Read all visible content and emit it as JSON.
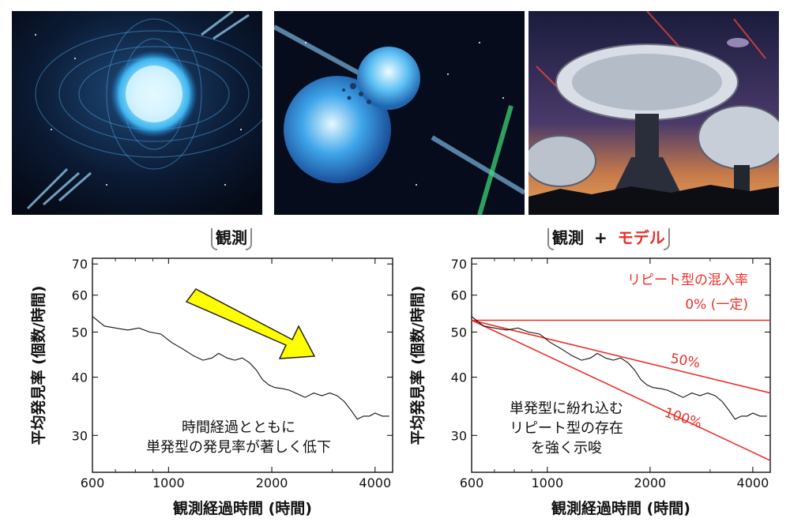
{
  "labels": {
    "left_tag": "観測",
    "right_tag_prefix": "観測",
    "right_tag_plus": "+",
    "right_tag_model": "モデル"
  },
  "chart_data": [
    {
      "type": "line",
      "ylabel": "平均発見率 (個数/時間)",
      "xlabel": "観測経過時間 (時間)",
      "xscale": "log",
      "yscale": "log",
      "xlim": [
        600,
        4500
      ],
      "ylim": [
        25,
        72
      ],
      "xticks": [
        600,
        1000,
        2000,
        4000
      ],
      "xtick_labels": [
        "600",
        "1000",
        "2000",
        "4000"
      ],
      "yticks": [
        30,
        40,
        50,
        60,
        70
      ],
      "ytick_labels": [
        "30",
        "40",
        "50",
        "60",
        "70"
      ],
      "series": [
        {
          "x": [
            600,
            650,
            700,
            760,
            820,
            880,
            950,
            1020,
            1100,
            1180,
            1260,
            1340,
            1400,
            1480,
            1560,
            1640,
            1720,
            1800,
            1880,
            1960,
            2040,
            2150,
            2250,
            2380,
            2500,
            2650,
            2800,
            2950,
            3100,
            3250,
            3400,
            3550,
            3700,
            3850,
            4000,
            4200,
            4400
          ],
          "y": [
            54,
            51.5,
            51,
            50.5,
            51,
            50,
            49.5,
            47.5,
            46,
            44.5,
            43.5,
            44,
            45,
            44,
            43.5,
            44,
            43,
            41.5,
            39.5,
            38.5,
            38,
            37.8,
            37.5,
            36.8,
            36.2,
            37,
            36.5,
            37,
            36.5,
            35.5,
            34,
            32.5,
            33,
            33,
            33.5,
            33,
            33
          ]
        }
      ],
      "annotation_lines": [
        "時間経過とともに",
        "単発型の発見率が著しく低下"
      ],
      "arrow_color": "#ffff00"
    },
    {
      "type": "line",
      "ylabel": "平均発見率 (個数/時間)",
      "xlabel": "観測経過時間 (時間)",
      "xscale": "log",
      "yscale": "log",
      "xlim": [
        600,
        4500
      ],
      "ylim": [
        25,
        72
      ],
      "xticks": [
        600,
        1000,
        2000,
        4000
      ],
      "xtick_labels": [
        "600",
        "1000",
        "2000",
        "4000"
      ],
      "yticks": [
        30,
        40,
        50,
        60,
        70
      ],
      "ytick_labels": [
        "30",
        "40",
        "50",
        "60",
        "70"
      ],
      "series": [
        {
          "x": [
            600,
            650,
            700,
            760,
            820,
            880,
            950,
            1020,
            1100,
            1180,
            1260,
            1340,
            1400,
            1480,
            1560,
            1640,
            1720,
            1800,
            1880,
            1960,
            2040,
            2150,
            2250,
            2380,
            2500,
            2650,
            2800,
            2950,
            3100,
            3250,
            3400,
            3550,
            3700,
            3850,
            4000,
            4200,
            4400
          ],
          "y": [
            54,
            51.5,
            51,
            50.5,
            51,
            50,
            49.5,
            47.5,
            46,
            44.5,
            43.5,
            44,
            45,
            44,
            43.5,
            44,
            43,
            41.5,
            39.5,
            38.5,
            38,
            37.8,
            37.5,
            36.8,
            36.2,
            37,
            36.5,
            37,
            36.5,
            35.5,
            34,
            32.5,
            33,
            33,
            33.5,
            33,
            33
          ]
        }
      ],
      "model_lines": [
        {
          "name": "0% (一定)",
          "x": [
            600,
            4500
          ],
          "y": [
            53,
            53
          ],
          "color": "#e8302a"
        },
        {
          "name": "50%",
          "x": [
            600,
            4500
          ],
          "y": [
            53,
            37
          ],
          "color": "#e8302a"
        },
        {
          "name": "100%",
          "x": [
            600,
            4500
          ],
          "y": [
            53,
            26.5
          ],
          "color": "#e8302a"
        }
      ],
      "legend_title": "リピート型の混入率",
      "annotation_lines": [
        "単発型に紛れ込む",
        "リピート型の存在",
        "を強く示唆"
      ]
    }
  ]
}
